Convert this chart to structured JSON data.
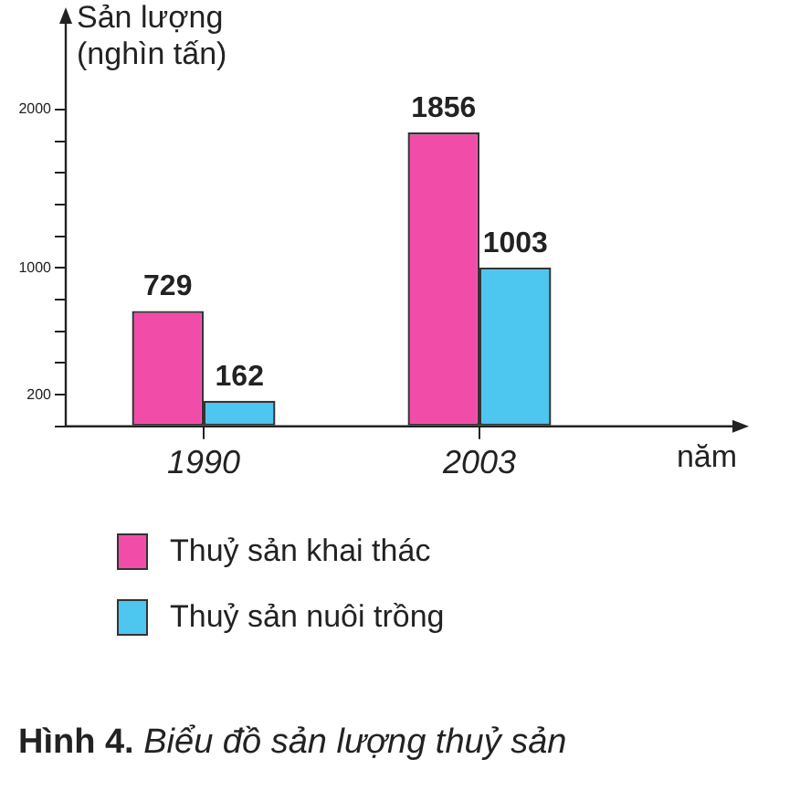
{
  "chart_data": {
    "type": "bar",
    "title": "Hình 4. Biểu đồ sản lượng thuỷ sản",
    "ylabel": "Sản lượng (nghìn tấn)",
    "xlabel": "năm",
    "categories": [
      "1990",
      "2003"
    ],
    "series": [
      {
        "name": "Thuỷ sản khai thác",
        "color": "#f24ca9",
        "values": [
          729,
          1856
        ]
      },
      {
        "name": "Thuỷ sản nuôi trồng",
        "color": "#4dc6f0",
        "values": [
          162,
          1003
        ]
      }
    ],
    "ylim": [
      0,
      2600
    ],
    "yticks": [
      {
        "value": 0,
        "label": null
      },
      200,
      {
        "value": 400,
        "label": null
      },
      {
        "value": 600,
        "label": null
      },
      {
        "value": 800,
        "label": null
      },
      1000,
      {
        "value": 1200,
        "label": null
      },
      {
        "value": 1400,
        "label": null
      },
      {
        "value": 1600,
        "label": null
      },
      {
        "value": 1800,
        "label": null
      },
      2000
    ],
    "data_labels": true,
    "grid": false,
    "legend": "bottom"
  }
}
